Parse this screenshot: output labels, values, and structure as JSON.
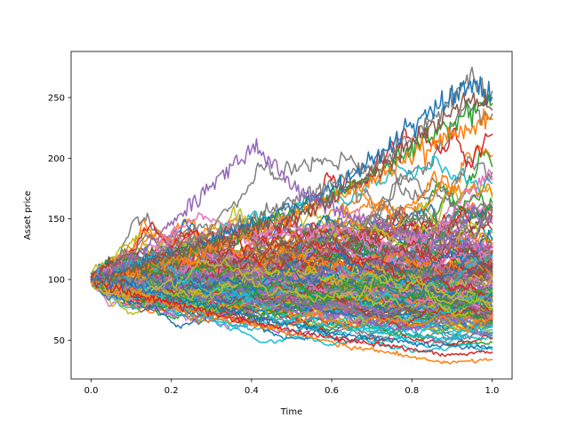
{
  "chart_data": {
    "type": "line",
    "title": "",
    "xlabel": "Time",
    "ylabel": "Asset price",
    "xlim": [
      -0.05,
      1.05
    ],
    "ylim": [
      18,
      288
    ],
    "grid": false,
    "legend": "none",
    "x_ticks": [
      0.0,
      0.2,
      0.4,
      0.6,
      0.8,
      1.0
    ],
    "x_tick_labels": [
      "0.0",
      "0.2",
      "0.4",
      "0.6",
      "0.8",
      "1.0"
    ],
    "y_ticks": [
      50,
      100,
      150,
      200,
      250
    ],
    "y_tick_labels": [
      "50",
      "100",
      "150",
      "200",
      "250"
    ],
    "x": [
      0.0,
      0.05,
      0.1,
      0.15,
      0.2,
      0.25,
      0.3,
      0.35,
      0.4,
      0.45,
      0.5,
      0.55,
      0.6,
      0.65,
      0.7,
      0.75,
      0.8,
      0.85,
      0.9,
      0.95,
      1.0
    ],
    "series_count": 200,
    "colors": [
      "#1f77b4",
      "#ff7f0e",
      "#2ca02c",
      "#d62728",
      "#9467bd",
      "#8c564b",
      "#e377c2",
      "#7f7f7f",
      "#bcbd22",
      "#17becf"
    ],
    "highlighted_series": [
      {
        "color": "#7f7f7f",
        "values": [
          100,
          104,
          112,
          118,
          126,
          132,
          138,
          142,
          150,
          158,
          163,
          170,
          178,
          185,
          195,
          205,
          218,
          232,
          248,
          268,
          255
        ]
      },
      {
        "color": "#2ca02c",
        "values": [
          100,
          103,
          108,
          112,
          118,
          124,
          130,
          136,
          142,
          148,
          155,
          162,
          170,
          178,
          186,
          196,
          206,
          218,
          228,
          238,
          245
        ]
      },
      {
        "color": "#ff7f0e",
        "values": [
          100,
          102,
          106,
          110,
          116,
          120,
          126,
          132,
          138,
          146,
          152,
          160,
          166,
          172,
          182,
          192,
          202,
          212,
          220,
          226,
          232
        ]
      },
      {
        "color": "#1f77b4",
        "values": [
          100,
          104,
          110,
          116,
          122,
          128,
          134,
          140,
          146,
          152,
          160,
          166,
          176,
          186,
          198,
          212,
          228,
          240,
          252,
          262,
          250
        ]
      },
      {
        "color": "#9467bd",
        "values": [
          100,
          106,
          116,
          130,
          148,
          162,
          178,
          192,
          208,
          198,
          176,
          168,
          160,
          152,
          146,
          142,
          138,
          134,
          130,
          128,
          126
        ]
      },
      {
        "color": "#8c564b",
        "values": [
          100,
          102,
          108,
          114,
          120,
          126,
          130,
          136,
          140,
          146,
          150,
          158,
          166,
          176,
          186,
          198,
          214,
          226,
          238,
          248,
          240
        ]
      },
      {
        "color": "#ff7f0e",
        "values": [
          100,
          96,
          90,
          84,
          80,
          76,
          72,
          68,
          64,
          60,
          56,
          52,
          48,
          44,
          42,
          40,
          36,
          33,
          32,
          33,
          34
        ]
      },
      {
        "color": "#d62728",
        "values": [
          100,
          95,
          88,
          84,
          80,
          76,
          72,
          68,
          65,
          62,
          58,
          55,
          52,
          50,
          47,
          45,
          42,
          40,
          38,
          39,
          40
        ]
      },
      {
        "color": "#1f77b4",
        "values": [
          100,
          98,
          96,
          90,
          86,
          82,
          78,
          74,
          70,
          66,
          62,
          60,
          56,
          54,
          52,
          50,
          48,
          46,
          45,
          44,
          44
        ]
      }
    ]
  }
}
